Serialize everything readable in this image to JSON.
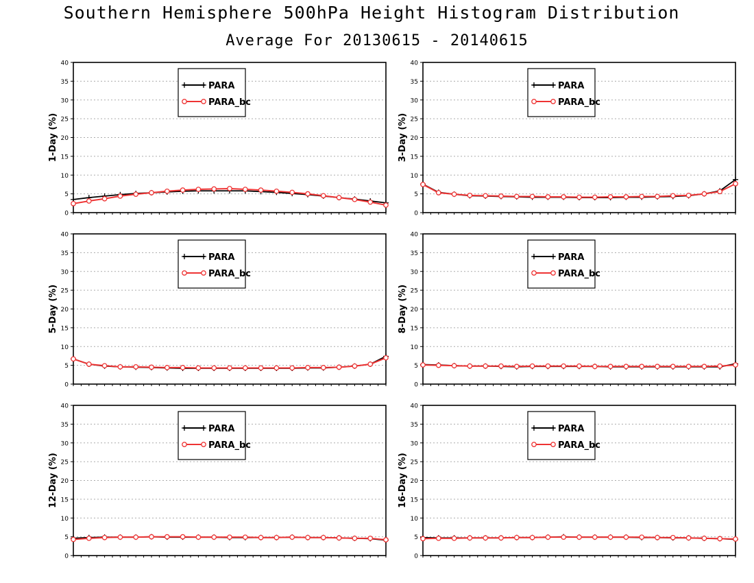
{
  "title": "Southern Hemisphere 500hPa Height Histogram Distribution",
  "subtitle": "Average For 20130615 - 20140615",
  "colors": {
    "para": "#000000",
    "para_bc": "#ee3333",
    "grid": "#aaaaaa"
  },
  "chart_data": [
    {
      "type": "line",
      "ylabel": "1-Day (%)",
      "ylim": [
        0,
        40
      ],
      "yticks": [
        0,
        5,
        10,
        15,
        20,
        25,
        30,
        35,
        40
      ],
      "grid": "horizontal dotted",
      "legend": "top-center",
      "x": [
        1,
        2,
        3,
        4,
        5,
        6,
        7,
        8,
        9,
        10,
        11,
        12,
        13,
        14,
        15,
        16,
        17,
        18,
        19,
        20,
        21
      ],
      "series": [
        {
          "name": "PARA",
          "marker": "plus",
          "values": [
            3.5,
            4.0,
            4.4,
            4.8,
            5.1,
            5.3,
            5.5,
            5.7,
            5.8,
            5.8,
            5.8,
            5.8,
            5.6,
            5.4,
            5.1,
            4.8,
            4.4,
            4.0,
            3.6,
            3.1,
            2.6
          ]
        },
        {
          "name": "PARA_bc",
          "marker": "circle",
          "values": [
            2.4,
            3.1,
            3.7,
            4.4,
            4.9,
            5.3,
            5.7,
            6.0,
            6.2,
            6.3,
            6.4,
            6.2,
            6.0,
            5.7,
            5.4,
            5.0,
            4.5,
            4.0,
            3.5,
            2.8,
            2.0
          ]
        }
      ]
    },
    {
      "type": "line",
      "ylabel": "3-Day (%)",
      "ylim": [
        0,
        40
      ],
      "yticks": [
        0,
        5,
        10,
        15,
        20,
        25,
        30,
        35,
        40
      ],
      "grid": "horizontal dotted",
      "legend": "top-center",
      "x": [
        1,
        2,
        3,
        4,
        5,
        6,
        7,
        8,
        9,
        10,
        11,
        12,
        13,
        14,
        15,
        16,
        17,
        18,
        19,
        20,
        21
      ],
      "series": [
        {
          "name": "PARA",
          "marker": "plus",
          "values": [
            7.6,
            5.4,
            4.9,
            4.5,
            4.4,
            4.3,
            4.2,
            4.1,
            4.1,
            4.1,
            4.0,
            4.0,
            4.0,
            4.1,
            4.1,
            4.2,
            4.3,
            4.5,
            5.0,
            5.8,
            8.8
          ]
        },
        {
          "name": "PARA_bc",
          "marker": "circle",
          "values": [
            7.5,
            5.3,
            4.9,
            4.6,
            4.5,
            4.4,
            4.3,
            4.3,
            4.2,
            4.2,
            4.1,
            4.1,
            4.2,
            4.2,
            4.3,
            4.3,
            4.5,
            4.6,
            5.0,
            5.6,
            7.7
          ]
        }
      ]
    },
    {
      "type": "line",
      "ylabel": "5-Day (%)",
      "ylim": [
        0,
        40
      ],
      "yticks": [
        0,
        5,
        10,
        15,
        20,
        25,
        30,
        35,
        40
      ],
      "grid": "horizontal dotted",
      "legend": "top-center",
      "x": [
        1,
        2,
        3,
        4,
        5,
        6,
        7,
        8,
        9,
        10,
        11,
        12,
        13,
        14,
        15,
        16,
        17,
        18,
        19,
        20,
        21
      ],
      "series": [
        {
          "name": "PARA",
          "marker": "plus",
          "values": [
            6.7,
            5.3,
            4.8,
            4.6,
            4.5,
            4.4,
            4.3,
            4.2,
            4.2,
            4.2,
            4.2,
            4.2,
            4.2,
            4.2,
            4.2,
            4.3,
            4.3,
            4.5,
            4.8,
            5.3,
            7.4
          ]
        },
        {
          "name": "PARA_bc",
          "marker": "circle",
          "values": [
            6.7,
            5.3,
            4.9,
            4.6,
            4.6,
            4.5,
            4.4,
            4.4,
            4.3,
            4.3,
            4.3,
            4.3,
            4.3,
            4.3,
            4.3,
            4.4,
            4.4,
            4.5,
            4.8,
            5.3,
            7.0
          ]
        }
      ]
    },
    {
      "type": "line",
      "ylabel": "8-Day (%)",
      "ylim": [
        0,
        40
      ],
      "yticks": [
        0,
        5,
        10,
        15,
        20,
        25,
        30,
        35,
        40
      ],
      "grid": "horizontal dotted",
      "legend": "top-center",
      "x": [
        1,
        2,
        3,
        4,
        5,
        6,
        7,
        8,
        9,
        10,
        11,
        12,
        13,
        14,
        15,
        16,
        17,
        18,
        19,
        20,
        21
      ],
      "series": [
        {
          "name": "PARA",
          "marker": "plus",
          "values": [
            5.2,
            5.1,
            4.9,
            4.8,
            4.8,
            4.7,
            4.6,
            4.7,
            4.7,
            4.7,
            4.7,
            4.7,
            4.6,
            4.6,
            4.6,
            4.6,
            4.6,
            4.6,
            4.6,
            4.6,
            5.4
          ]
        },
        {
          "name": "PARA_bc",
          "marker": "circle",
          "values": [
            5.1,
            5.0,
            4.9,
            4.8,
            4.8,
            4.8,
            4.7,
            4.8,
            4.8,
            4.8,
            4.8,
            4.7,
            4.7,
            4.7,
            4.7,
            4.7,
            4.7,
            4.7,
            4.7,
            4.8,
            5.1
          ]
        }
      ]
    },
    {
      "type": "line",
      "ylabel": "12-Day (%)",
      "ylim": [
        0,
        40
      ],
      "yticks": [
        0,
        5,
        10,
        15,
        20,
        25,
        30,
        35,
        40
      ],
      "grid": "horizontal dotted",
      "legend": "top-center",
      "x": [
        1,
        2,
        3,
        4,
        5,
        6,
        7,
        8,
        9,
        10,
        11,
        12,
        13,
        14,
        15,
        16,
        17,
        18,
        19,
        20,
        21
      ],
      "series": [
        {
          "name": "PARA",
          "marker": "plus",
          "values": [
            4.6,
            4.8,
            4.9,
            4.9,
            4.9,
            5.0,
            4.9,
            4.9,
            4.9,
            4.9,
            4.8,
            4.8,
            4.8,
            4.8,
            4.9,
            4.8,
            4.8,
            4.7,
            4.6,
            4.5,
            4.1
          ]
        },
        {
          "name": "PARA_bc",
          "marker": "circle",
          "values": [
            4.3,
            4.6,
            4.8,
            4.9,
            4.9,
            5.0,
            5.0,
            5.0,
            4.9,
            4.9,
            4.9,
            4.9,
            4.8,
            4.8,
            4.9,
            4.8,
            4.8,
            4.7,
            4.6,
            4.6,
            4.2
          ]
        }
      ]
    },
    {
      "type": "line",
      "ylabel": "16-Day (%)",
      "ylim": [
        0,
        40
      ],
      "yticks": [
        0,
        5,
        10,
        15,
        20,
        25,
        30,
        35,
        40
      ],
      "grid": "horizontal dotted",
      "legend": "top-center",
      "x": [
        1,
        2,
        3,
        4,
        5,
        6,
        7,
        8,
        9,
        10,
        11,
        12,
        13,
        14,
        15,
        16,
        17,
        18,
        19,
        20,
        21
      ],
      "series": [
        {
          "name": "PARA",
          "marker": "plus",
          "values": [
            4.8,
            4.7,
            4.7,
            4.7,
            4.7,
            4.7,
            4.8,
            4.8,
            4.9,
            5.0,
            4.9,
            4.9,
            4.9,
            4.9,
            4.8,
            4.8,
            4.7,
            4.7,
            4.6,
            4.5,
            4.3
          ]
        },
        {
          "name": "PARA_bc",
          "marker": "circle",
          "values": [
            4.5,
            4.6,
            4.6,
            4.7,
            4.7,
            4.7,
            4.8,
            4.8,
            4.9,
            4.9,
            4.9,
            4.9,
            4.9,
            4.9,
            4.9,
            4.8,
            4.8,
            4.7,
            4.6,
            4.5,
            4.4
          ]
        }
      ]
    }
  ]
}
